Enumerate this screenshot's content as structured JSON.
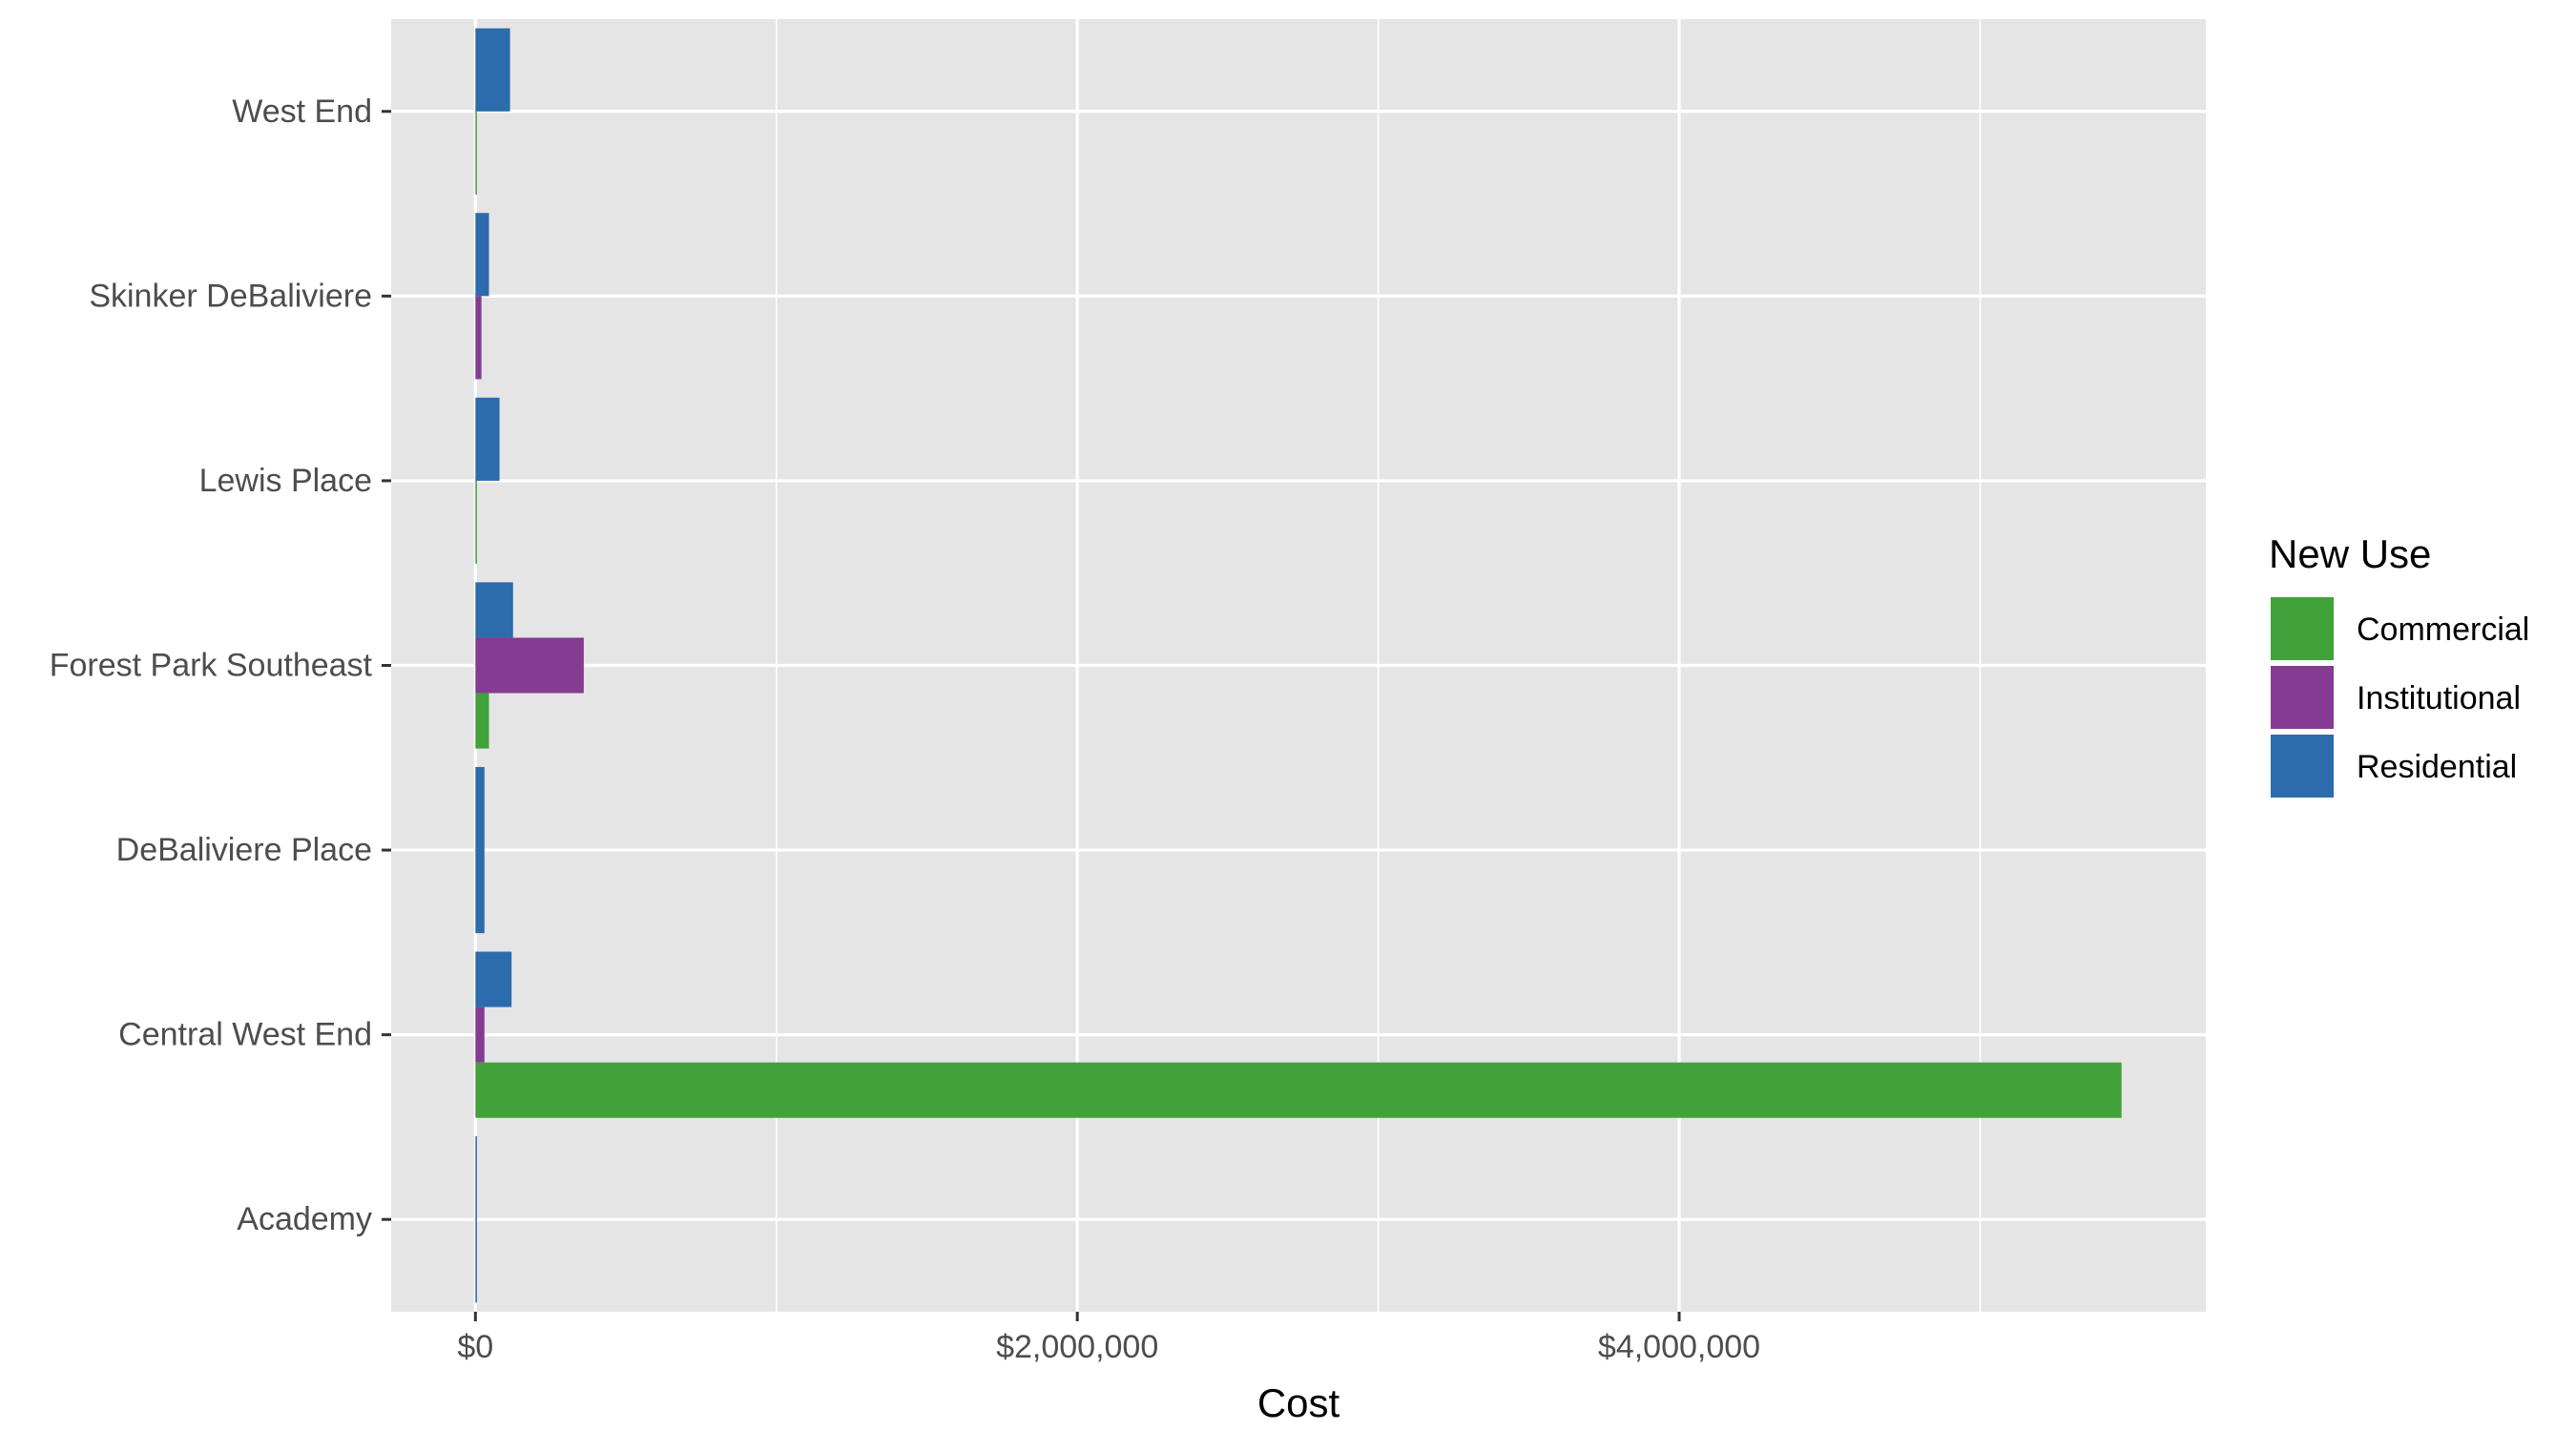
{
  "chart_data": {
    "type": "bar",
    "orientation": "horizontal",
    "bar_position": "dodge",
    "categories": [
      "Academy",
      "Central West End",
      "DeBaliviere Place",
      "Forest Park Southeast",
      "Lewis Place",
      "Skinker DeBaliviere",
      "West End"
    ],
    "series": [
      {
        "name": "Commercial",
        "color": "#41A23B",
        "values": [
          null,
          5470000,
          null,
          45000,
          5000,
          null,
          5000
        ]
      },
      {
        "name": "Institutional",
        "color": "#843B91",
        "values": [
          null,
          30000,
          null,
          360000,
          null,
          20000,
          null
        ]
      },
      {
        "name": "Residential",
        "color": "#2C6BAC",
        "values": [
          5000,
          120000,
          30000,
          125000,
          80000,
          45000,
          115000
        ]
      }
    ],
    "xlabel": "Cost",
    "ylabel": "",
    "xlim": [
      -280000,
      5750000
    ],
    "x_ticks": [
      0,
      2000000,
      4000000
    ],
    "x_tick_labels": [
      "$0",
      "$2,000,000",
      "$4,000,000"
    ],
    "grid": true,
    "panel_background": "#E5E5E5",
    "grid_color": "#FFFFFF",
    "legend": {
      "title": "New Use",
      "placement": "right"
    }
  }
}
